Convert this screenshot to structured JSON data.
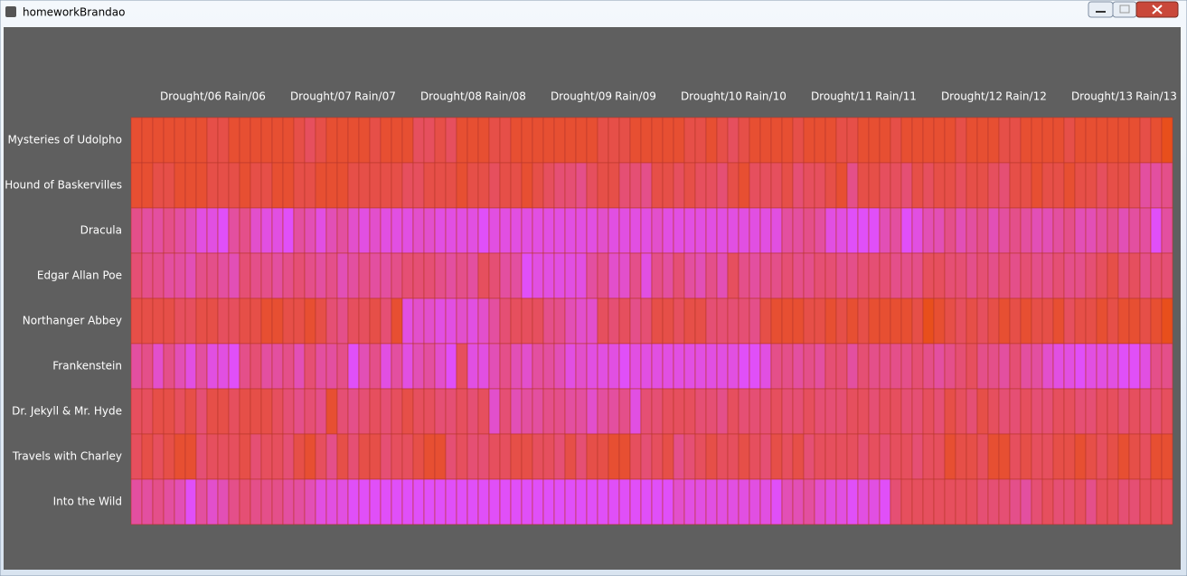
{
  "window_title": "homeworkBrandao",
  "chart_data": {
    "type": "heatmap",
    "colormap": [
      "#e84f1c",
      "#e04ff8"
    ],
    "zlim": [
      0,
      10
    ],
    "categories": [
      null,
      null,
      null,
      null,
      null,
      "Drought/06",
      null,
      null,
      null,
      null,
      "Rain/06",
      null,
      null,
      null,
      null,
      null,
      null,
      "Drought/07",
      null,
      null,
      null,
      null,
      "Rain/07",
      null,
      null,
      null,
      null,
      null,
      null,
      "Drought/08",
      null,
      null,
      null,
      null,
      "Rain/08",
      null,
      null,
      null,
      null,
      null,
      null,
      "Drought/09",
      null,
      null,
      null,
      null,
      "Rain/09",
      null,
      null,
      null,
      null,
      null,
      null,
      "Drought/10",
      null,
      null,
      null,
      null,
      "Rain/10",
      null,
      null,
      null,
      null,
      null,
      null,
      "Drought/11",
      null,
      null,
      null,
      null,
      "Rain/11",
      null,
      null,
      null,
      null,
      null,
      null,
      "Drought/12",
      null,
      null,
      null,
      null,
      "Rain/12",
      null,
      null,
      null,
      null,
      null,
      null,
      "Drought/13",
      null,
      null,
      null,
      null,
      "Rain/13",
      null
    ],
    "series": [
      {
        "name": "Mysteries of Udolpho",
        "values": [
          1,
          1,
          1,
          1,
          1,
          1,
          1,
          2,
          2,
          1,
          1,
          1,
          1,
          1,
          1,
          2,
          3,
          2,
          1,
          1,
          1,
          1,
          2,
          1,
          1,
          1,
          3,
          3,
          2,
          3,
          1,
          1,
          1,
          2,
          2,
          1,
          1,
          1,
          1,
          1,
          1,
          1,
          1,
          2,
          2,
          2,
          1,
          1,
          1,
          1,
          1,
          2,
          2,
          1,
          2,
          3,
          2,
          1,
          1,
          1,
          1,
          2,
          1,
          1,
          1,
          2,
          2,
          1,
          1,
          1,
          2,
          1,
          1,
          1,
          1,
          1,
          2,
          1,
          1,
          1,
          2,
          2,
          1,
          1,
          1,
          1,
          2,
          1,
          1,
          1,
          1,
          1,
          1,
          2,
          1,
          0
        ]
      },
      {
        "name": "Hound of Baskervilles",
        "values": [
          1,
          1,
          2,
          2,
          1,
          1,
          1,
          2,
          2,
          2,
          1,
          2,
          2,
          1,
          1,
          2,
          2,
          1,
          1,
          1,
          2,
          2,
          2,
          2,
          2,
          3,
          3,
          2,
          2,
          2,
          1,
          2,
          2,
          3,
          2,
          2,
          1,
          2,
          3,
          4,
          4,
          5,
          3,
          2,
          2,
          4,
          4,
          5,
          2,
          2,
          3,
          2,
          3,
          3,
          4,
          2,
          1,
          3,
          3,
          3,
          2,
          4,
          3,
          3,
          2,
          1,
          5,
          2,
          2,
          3,
          3,
          4,
          2,
          3,
          2,
          2,
          3,
          2,
          2,
          3,
          4,
          2,
          2,
          1,
          2,
          2,
          1,
          2,
          2,
          3,
          2,
          2,
          3,
          6,
          6,
          5
        ]
      },
      {
        "name": "Dracula",
        "values": [
          5,
          6,
          6,
          5,
          6,
          7,
          9,
          9,
          10,
          6,
          5,
          8,
          9,
          9,
          10,
          6,
          7,
          9,
          7,
          6,
          8,
          9,
          8,
          9,
          9,
          9,
          8,
          8,
          9,
          9,
          9,
          9,
          10,
          9,
          9,
          9,
          9,
          9,
          9,
          9,
          9,
          9,
          9,
          8,
          9,
          9,
          9,
          9,
          8,
          9,
          9,
          9,
          9,
          9,
          9,
          9,
          9,
          9,
          9,
          9,
          6,
          6,
          5,
          6,
          9,
          9,
          10,
          10,
          10,
          7,
          6,
          10,
          9,
          7,
          7,
          5,
          7,
          6,
          5,
          7,
          6,
          5,
          6,
          7,
          7,
          6,
          5,
          7,
          7,
          6,
          5,
          7,
          6,
          6,
          10,
          6
        ]
      },
      {
        "name": "Edgar Allan Poe",
        "values": [
          4,
          5,
          5,
          6,
          6,
          7,
          5,
          5,
          6,
          7,
          4,
          5,
          5,
          6,
          5,
          4,
          5,
          6,
          5,
          7,
          6,
          5,
          6,
          6,
          5,
          4,
          4,
          4,
          5,
          6,
          5,
          6,
          3,
          4,
          6,
          6,
          10,
          9,
          9,
          9,
          9,
          9,
          6,
          5,
          8,
          8,
          5,
          9,
          5,
          6,
          4,
          6,
          7,
          5,
          7,
          3,
          5,
          6,
          5,
          5,
          4,
          5,
          5,
          4,
          4,
          5,
          5,
          4,
          4,
          4,
          5,
          5,
          5,
          3,
          3,
          4,
          4,
          5,
          4,
          5,
          4,
          5,
          4,
          5,
          5,
          4,
          5,
          5,
          4,
          3,
          2,
          4,
          3,
          5,
          4,
          4
        ]
      },
      {
        "name": "Northanger Abbey",
        "values": [
          2,
          2,
          2,
          2,
          3,
          3,
          2,
          2,
          3,
          3,
          2,
          2,
          1,
          1,
          2,
          2,
          1,
          2,
          4,
          5,
          3,
          3,
          2,
          4,
          1,
          9,
          8,
          8,
          9,
          9,
          8,
          9,
          8,
          6,
          4,
          3,
          3,
          3,
          5,
          5,
          7,
          8,
          8,
          3,
          4,
          3,
          5,
          4,
          2,
          2,
          3,
          2,
          2,
          4,
          4,
          4,
          4,
          5,
          2,
          1,
          1,
          1,
          2,
          2,
          1,
          2,
          1,
          2,
          1,
          1,
          1,
          1,
          2,
          0,
          1,
          2,
          3,
          2,
          3,
          2,
          1,
          2,
          1,
          2,
          2,
          1,
          3,
          2,
          2,
          1,
          2,
          1,
          1,
          2,
          1,
          0
        ]
      },
      {
        "name": "Frankenstein",
        "values": [
          6,
          5,
          8,
          5,
          7,
          9,
          6,
          9,
          9,
          10,
          5,
          4,
          6,
          6,
          5,
          7,
          4,
          6,
          6,
          5,
          10,
          7,
          5,
          9,
          6,
          9,
          7,
          6,
          8,
          10,
          3,
          9,
          9,
          7,
          5,
          7,
          8,
          6,
          6,
          7,
          9,
          8,
          9,
          9,
          9,
          10,
          9,
          9,
          9,
          9,
          9,
          9,
          9,
          9,
          9,
          9,
          10,
          10,
          9,
          5,
          5,
          6,
          5,
          6,
          4,
          4,
          6,
          4,
          5,
          5,
          5,
          5,
          4,
          5,
          6,
          5,
          4,
          3,
          5,
          5,
          6,
          4,
          6,
          6,
          8,
          9,
          9,
          10,
          9,
          9,
          9,
          10,
          10,
          9,
          5,
          5
        ]
      },
      {
        "name": "Dr. Jekyll & Mr. Hyde",
        "values": [
          3,
          3,
          2,
          2,
          3,
          2,
          4,
          2,
          2,
          3,
          2,
          2,
          2,
          3,
          4,
          5,
          4,
          5,
          1,
          4,
          5,
          4,
          3,
          4,
          3,
          2,
          3,
          3,
          4,
          4,
          3,
          4,
          3,
          8,
          4,
          7,
          6,
          6,
          5,
          5,
          6,
          6,
          8,
          6,
          6,
          5,
          9,
          4,
          4,
          3,
          3,
          3,
          4,
          4,
          5,
          3,
          4,
          4,
          4,
          3,
          4,
          4,
          3,
          4,
          4,
          4,
          3,
          3,
          4,
          3,
          3,
          4,
          4,
          3,
          4,
          2,
          3,
          4,
          2,
          3,
          4,
          4,
          3,
          4,
          4,
          3,
          3,
          4,
          4,
          3,
          3,
          4,
          3,
          4,
          4,
          3
        ]
      },
      {
        "name": "Travels with Charley",
        "values": [
          3,
          2,
          3,
          2,
          1,
          1,
          4,
          3,
          3,
          3,
          2,
          4,
          3,
          3,
          4,
          2,
          1,
          3,
          5,
          2,
          4,
          2,
          2,
          4,
          3,
          3,
          2,
          1,
          1,
          4,
          3,
          4,
          4,
          3,
          3,
          2,
          2,
          3,
          3,
          4,
          2,
          4,
          2,
          2,
          1,
          1,
          3,
          4,
          3,
          2,
          5,
          4,
          3,
          2,
          3,
          3,
          2,
          3,
          4,
          2,
          3,
          2,
          4,
          3,
          3,
          3,
          3,
          4,
          3,
          4,
          3,
          3,
          4,
          3,
          3,
          1,
          2,
          2,
          3,
          1,
          1,
          3,
          2,
          3,
          3,
          2,
          2,
          1,
          2,
          3,
          2,
          1,
          2,
          3,
          1,
          1
        ]
      },
      {
        "name": "Into the Wild",
        "values": [
          6,
          6,
          5,
          6,
          7,
          10,
          6,
          8,
          7,
          5,
          4,
          5,
          5,
          5,
          6,
          6,
          7,
          9,
          9,
          9,
          10,
          10,
          10,
          10,
          10,
          10,
          10,
          10,
          10,
          10,
          10,
          10,
          10,
          10,
          10,
          10,
          10,
          10,
          10,
          10,
          10,
          10,
          10,
          10,
          10,
          10,
          10,
          10,
          10,
          10,
          8,
          9,
          9,
          9,
          9,
          9,
          9,
          9,
          9,
          10,
          7,
          7,
          6,
          8,
          9,
          9,
          10,
          9,
          9,
          10,
          4,
          3,
          3,
          3,
          3,
          3,
          3,
          3,
          4,
          4,
          4,
          5,
          6,
          4,
          3,
          4,
          4,
          3,
          5,
          3,
          3,
          4,
          4,
          3,
          3,
          3
        ]
      }
    ]
  }
}
